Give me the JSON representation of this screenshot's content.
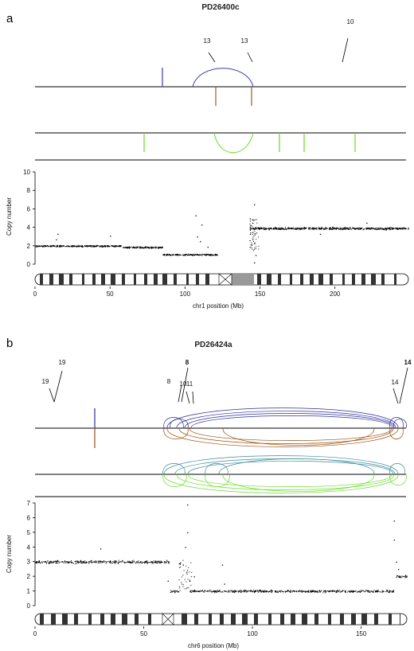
{
  "panels": [
    {
      "letter": "a",
      "title": "PD26400c",
      "colors": {
        "deletion": "#3b3bb3",
        "tandem_dup": "#a05a1e",
        "inversion": "#66dd22",
        "tra": "#111111"
      },
      "sv_labels": [
        "13",
        "13",
        "10"
      ],
      "chart_data": {
        "type": "scatter",
        "title": "PD26400c",
        "xlabel": "chr1 position (Mb)",
        "ylabel": "Copy number",
        "xlim": [
          0,
          249
        ],
        "ylim": [
          0,
          10
        ],
        "xticks": [
          0,
          50,
          100,
          150,
          200
        ],
        "yticks": [
          0,
          2,
          4,
          6,
          8,
          10
        ],
        "segments": [
          {
            "start": 0,
            "end": 58,
            "cn": 2.0
          },
          {
            "start": 58,
            "end": 85,
            "cn": 1.85
          },
          {
            "start": 85,
            "end": 122,
            "cn": 1.05
          },
          {
            "start": 143,
            "end": 249,
            "cn": 3.9
          }
        ],
        "outliers": [
          [
            15,
            3.3
          ],
          [
            14,
            2.7
          ],
          [
            50,
            3.1
          ],
          [
            107,
            5.3
          ],
          [
            108,
            3.0
          ],
          [
            110,
            2.5
          ],
          [
            111,
            4.3
          ],
          [
            115,
            1.9
          ],
          [
            146,
            6.5
          ],
          [
            145,
            3.5
          ],
          [
            147,
            1.0
          ],
          [
            146,
            0.2
          ],
          [
            190,
            3.3
          ],
          [
            221,
            4.5
          ]
        ],
        "rearrangements": {
          "deletion_arcs": [
            {
              "start": 106,
              "end": 143
            }
          ],
          "deletion_ticks": [
            84
          ],
          "tandem_dup_ticks": [
            121,
            143
          ],
          "inversion_ticks": [
            73,
            165,
            182,
            218
          ],
          "inversion_arcs": [
            {
              "start": 121,
              "end": 143
            }
          ],
          "translocations": [
            {
              "pos": 215,
              "partner": "10"
            }
          ],
          "arc_labels": [
            {
              "pos": 118,
              "label": "13"
            },
            {
              "pos": 140,
              "label": "13"
            }
          ]
        }
      }
    },
    {
      "letter": "b",
      "title": "PD26424a",
      "colors": {
        "deletion": "#2e2e99",
        "tandem_dup": "#9a4f10",
        "inversion": "#66dd22",
        "inversion2": "#3a8a9a",
        "tra": "#111111"
      },
      "sv_labels": [
        "19",
        "19",
        "8",
        "8",
        "10",
        "11",
        "14",
        "14"
      ],
      "chart_data": {
        "type": "scatter",
        "title": "PD26424a",
        "xlabel": "chr6 position (Mb)",
        "ylabel": "Copy number",
        "xlim": [
          0,
          171
        ],
        "ylim": [
          0,
          7
        ],
        "xticks": [
          0,
          50,
          100,
          150
        ],
        "yticks": [
          0,
          1,
          2,
          3,
          4,
          5,
          6,
          7
        ],
        "segments": [
          {
            "start": 0,
            "end": 62,
            "cn": 3.0
          },
          {
            "start": 62,
            "end": 66,
            "cn": 1.0
          },
          {
            "start": 71,
            "end": 165,
            "cn": 1.0
          },
          {
            "start": 166,
            "end": 171,
            "cn": 2.0
          }
        ],
        "outliers": [
          [
            30,
            3.9
          ],
          [
            61,
            1.7
          ],
          [
            68,
            2.8
          ],
          [
            69,
            4.0
          ],
          [
            70,
            5.0
          ],
          [
            70,
            6.9
          ],
          [
            71,
            1.7
          ],
          [
            73,
            2.0
          ],
          [
            86,
            2.8
          ],
          [
            87,
            1.5
          ],
          [
            165,
            5.8
          ],
          [
            165,
            4.5
          ],
          [
            166,
            3.0
          ],
          [
            167,
            2.5
          ]
        ],
        "rearrangements": {
          "translocations": [
            {
              "pos": 8,
              "partner": "19"
            },
            {
              "pos": 69,
              "partner": "8"
            },
            {
              "pos": 166,
              "partner": "14"
            }
          ],
          "arc_labels": [
            {
              "pos": 8,
              "label": "19"
            },
            {
              "pos": 63,
              "label": "8"
            },
            {
              "pos": 69,
              "label": "10"
            },
            {
              "pos": 71,
              "label": "11"
            },
            {
              "pos": 69,
              "label": "8"
            },
            {
              "pos": 164,
              "label": "14"
            },
            {
              "pos": 167,
              "label": "14"
            }
          ],
          "deletion_ticks": [
            28
          ],
          "tandem_dup_ticks": [
            28
          ]
        }
      }
    }
  ]
}
